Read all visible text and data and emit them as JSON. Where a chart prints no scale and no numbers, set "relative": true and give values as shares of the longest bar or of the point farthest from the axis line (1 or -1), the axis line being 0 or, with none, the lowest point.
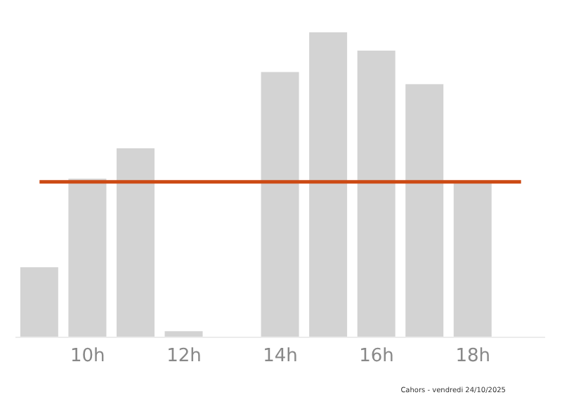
{
  "chart_data": {
    "type": "bar",
    "relative": true,
    "categories": [
      null,
      "10h",
      null,
      "12h",
      null,
      "14h",
      null,
      "16h",
      null,
      "18h",
      null
    ],
    "values": [
      0.23,
      0.52,
      0.62,
      0.02,
      0,
      0.87,
      1,
      0.94,
      0.83,
      0.51,
      null
    ],
    "color": "#d3d3d3",
    "ref_lines": [
      {
        "axis": "y",
        "value": 0.51,
        "color": "#cc4a14"
      }
    ],
    "annotations": [
      "Cahors - vendredi 24/10/2025"
    ],
    "grid": false
  }
}
